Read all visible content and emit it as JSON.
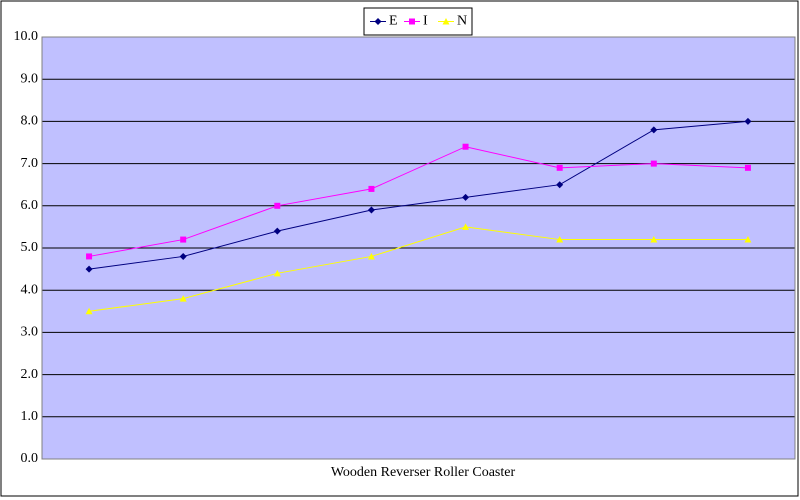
{
  "chart_data": {
    "type": "line",
    "x_label": "Wooden Reverser Roller Coaster",
    "categories": [
      null,
      null,
      null,
      null,
      null,
      null,
      null,
      null
    ],
    "series": [
      {
        "name": "E",
        "color": "#000080",
        "marker": "diamond",
        "values": [
          4.5,
          4.8,
          5.4,
          5.9,
          6.2,
          6.5,
          7.8,
          8.0
        ]
      },
      {
        "name": "I",
        "color": "#ff00ff",
        "marker": "square",
        "values": [
          4.8,
          5.2,
          6.0,
          6.4,
          7.4,
          6.9,
          7.0,
          6.9
        ]
      },
      {
        "name": "N",
        "color": "#ffff00",
        "marker": "triangle",
        "values": [
          3.5,
          3.8,
          4.4,
          4.8,
          5.5,
          5.2,
          5.2,
          5.2
        ]
      }
    ],
    "ylim": [
      0,
      10
    ],
    "yticks": [
      {
        "value": 0,
        "label": "0.0"
      },
      {
        "value": 1,
        "label": "1.0"
      },
      {
        "value": 2,
        "label": "2.0"
      },
      {
        "value": 3,
        "label": "3.0"
      },
      {
        "value": 4,
        "label": "4.0"
      },
      {
        "value": 5,
        "label": "5.0"
      },
      {
        "value": 6,
        "label": "6.0"
      },
      {
        "value": 7,
        "label": "7.0"
      },
      {
        "value": 8,
        "label": "8.0"
      },
      {
        "value": 9,
        "label": "9.0"
      },
      {
        "value": 10,
        "label": "10.0"
      }
    ],
    "grid": true,
    "plot_background": "#c0c0ff",
    "legend": "top"
  }
}
